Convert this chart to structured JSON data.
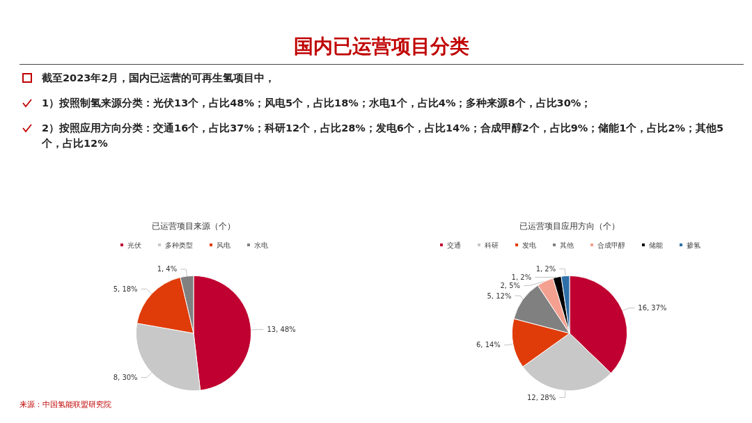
{
  "chart_data": [
    {
      "type": "other",
      "title": "国内已运营项目分类",
      "annotations": [
        "截至2023年2月，国内已运营的可再生氢项目中，",
        "1）按照制氢来源分类：光伏13个，占比48%；风电5个，占比18%；水电1个，占比4%；多种来源8个，占比30%；",
        "2）按照应用方向分类：交通16个，占比37%；科研12个，占比28%；发电6个，占比14%；合成甲醇2个，占比9%；储能1个，占比2%；其他5个，占比12%"
      ]
    },
    {
      "type": "pie",
      "title": "已运营项目来源（个）",
      "categories": [
        "光伏",
        "多种类型",
        "风电",
        "水电"
      ],
      "values": [
        13,
        8,
        5,
        1
      ],
      "value_labels": [
        "13, 48%",
        "8, 30%",
        "5, 18%",
        "1, 4%"
      ],
      "colors": [
        "#c00030",
        "#c8c8c8",
        "#e03c0a",
        "#808080"
      ],
      "legend": "top",
      "annotations": [
        "来源：中国氢能联盟研究院"
      ]
    },
    {
      "type": "pie",
      "title": "已运营项目应用方向（个）",
      "categories": [
        "交通",
        "科研",
        "发电",
        "其他",
        "合成甲醇",
        "储能",
        "掺氢"
      ],
      "values": [
        16,
        12,
        6,
        5,
        2,
        1,
        1
      ],
      "value_labels": [
        "16, 37%",
        "12, 28%",
        "6, 14%",
        "5, 12%",
        "2, 5%",
        "1, 2%",
        "1, 2%"
      ],
      "colors": [
        "#c00030",
        "#c8c8c8",
        "#e03c0a",
        "#808080",
        "#f4a090",
        "#000000",
        "#2e6fa8"
      ],
      "legend": "top"
    }
  ]
}
